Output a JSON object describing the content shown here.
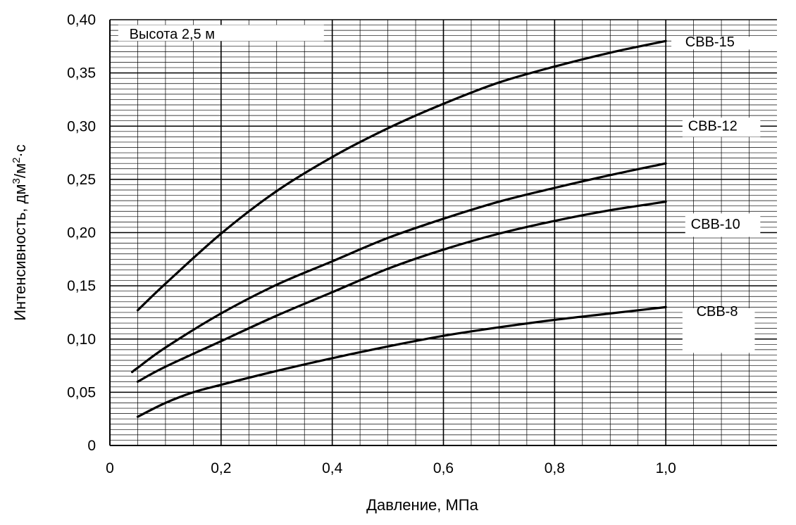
{
  "chart_data": {
    "type": "line",
    "title": "",
    "annotation": "Высота 2,5 м",
    "xlabel": "Давление, МПа",
    "ylabel_parts": [
      "Интенсивность, дм",
      "3",
      "/м",
      "2",
      "·с"
    ],
    "xlim": [
      0,
      1.2
    ],
    "ylim": [
      0,
      0.4
    ],
    "x_ticks": [
      0,
      0.2,
      0.4,
      0.6,
      0.8,
      1.0
    ],
    "x_tick_labels": [
      "0",
      "0,2",
      "0,4",
      "0,6",
      "0,8",
      "1,0"
    ],
    "y_ticks": [
      0,
      0.05,
      0.1,
      0.15,
      0.2,
      0.25,
      0.3,
      0.35,
      0.4
    ],
    "y_tick_labels": [
      "0",
      "0,05",
      "0,10",
      "0,15",
      "0,20",
      "0,25",
      "0,30",
      "0,35",
      "0,40"
    ],
    "grid": true,
    "series": [
      {
        "name": "СВВ-15",
        "x": [
          0.05,
          0.1,
          0.2,
          0.3,
          0.4,
          0.5,
          0.6,
          0.7,
          0.8,
          0.9,
          1.0
        ],
        "y": [
          0.127,
          0.152,
          0.199,
          0.239,
          0.271,
          0.298,
          0.321,
          0.341,
          0.356,
          0.369,
          0.38
        ]
      },
      {
        "name": "СВВ-12",
        "x": [
          0.04,
          0.05,
          0.1,
          0.2,
          0.3,
          0.4,
          0.5,
          0.6,
          0.7,
          0.8,
          0.9,
          1.0
        ],
        "y": [
          0.069,
          0.073,
          0.092,
          0.124,
          0.151,
          0.173,
          0.195,
          0.213,
          0.229,
          0.242,
          0.254,
          0.265
        ]
      },
      {
        "name": "СВВ-10",
        "x": [
          0.05,
          0.1,
          0.2,
          0.3,
          0.4,
          0.5,
          0.6,
          0.7,
          0.8,
          0.9,
          1.0
        ],
        "y": [
          0.06,
          0.074,
          0.098,
          0.122,
          0.144,
          0.166,
          0.184,
          0.199,
          0.211,
          0.221,
          0.229
        ]
      },
      {
        "name": "СВВ-8",
        "x": [
          0.05,
          0.1,
          0.15,
          0.2,
          0.3,
          0.4,
          0.5,
          0.6,
          0.7,
          0.8,
          0.9,
          1.0
        ],
        "y": [
          0.027,
          0.04,
          0.05,
          0.057,
          0.07,
          0.082,
          0.093,
          0.103,
          0.111,
          0.118,
          0.124,
          0.13
        ]
      }
    ]
  }
}
